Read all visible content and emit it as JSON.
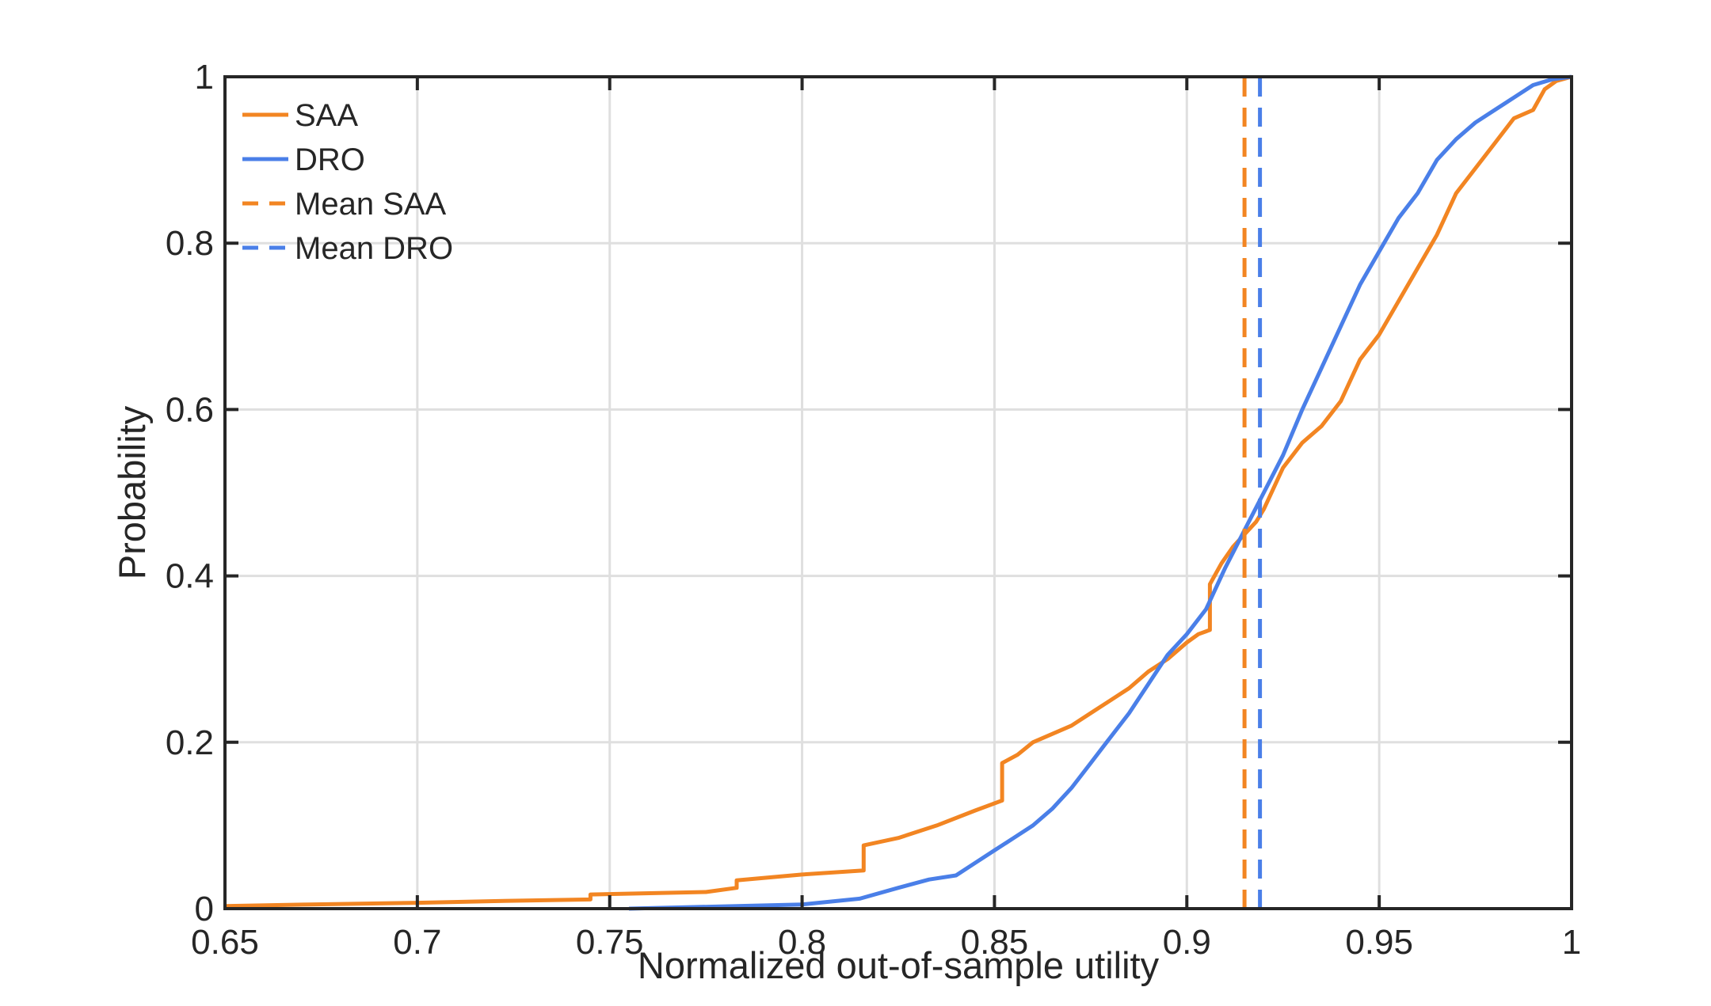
{
  "colors": {
    "saa": "#F28522",
    "dro": "#4A7FE8",
    "axis": "#262626",
    "grid": "#DFDFDF",
    "background": "#FFFFFF"
  },
  "chart_data": {
    "type": "line",
    "xlabel": "Normalized out-of-sample utility",
    "ylabel": "Probability",
    "xlim": [
      0.65,
      1
    ],
    "ylim": [
      0,
      1
    ],
    "xticks": [
      0.65,
      0.7,
      0.75,
      0.8,
      0.85,
      0.9,
      0.95,
      1
    ],
    "xtick_labels": [
      "0.65",
      "0.7",
      "0.75",
      "0.8",
      "0.85",
      "0.9",
      "0.95",
      "1"
    ],
    "yticks": [
      0,
      0.2,
      0.4,
      0.6,
      0.8,
      1
    ],
    "ytick_labels": [
      "0",
      "0.2",
      "0.4",
      "0.6",
      "0.8",
      "1"
    ],
    "grid": true,
    "legend_position": "top-left",
    "series": [
      {
        "name": "SAA",
        "style": "solid",
        "color": "#F28522",
        "x": [
          0.65,
          0.672,
          0.7,
          0.72,
          0.745,
          0.745,
          0.775,
          0.783,
          0.783,
          0.8,
          0.816,
          0.816,
          0.825,
          0.835,
          0.845,
          0.852,
          0.852,
          0.856,
          0.86,
          0.865,
          0.87,
          0.875,
          0.88,
          0.885,
          0.89,
          0.895,
          0.9,
          0.903,
          0.906,
          0.906,
          0.909,
          0.912,
          0.915,
          0.918,
          0.92,
          0.925,
          0.93,
          0.935,
          0.94,
          0.945,
          0.95,
          0.955,
          0.96,
          0.965,
          0.97,
          0.975,
          0.98,
          0.985,
          0.99,
          0.993,
          0.996,
          1.0
        ],
        "y": [
          0.003,
          0.005,
          0.007,
          0.009,
          0.011,
          0.017,
          0.02,
          0.025,
          0.034,
          0.041,
          0.046,
          0.076,
          0.085,
          0.1,
          0.118,
          0.13,
          0.175,
          0.185,
          0.2,
          0.21,
          0.22,
          0.235,
          0.25,
          0.265,
          0.285,
          0.3,
          0.32,
          0.33,
          0.335,
          0.39,
          0.415,
          0.435,
          0.45,
          0.465,
          0.48,
          0.53,
          0.56,
          0.58,
          0.61,
          0.66,
          0.69,
          0.73,
          0.77,
          0.81,
          0.86,
          0.89,
          0.92,
          0.95,
          0.96,
          0.985,
          0.995,
          1.0
        ]
      },
      {
        "name": "DRO",
        "style": "solid",
        "color": "#4A7FE8",
        "x": [
          0.755,
          0.8,
          0.815,
          0.825,
          0.833,
          0.84,
          0.845,
          0.85,
          0.855,
          0.86,
          0.865,
          0.87,
          0.875,
          0.88,
          0.885,
          0.89,
          0.895,
          0.9,
          0.905,
          0.91,
          0.915,
          0.92,
          0.925,
          0.93,
          0.935,
          0.94,
          0.945,
          0.95,
          0.955,
          0.96,
          0.965,
          0.97,
          0.975,
          0.98,
          0.985,
          0.99,
          0.995,
          1.0
        ],
        "y": [
          0.0,
          0.005,
          0.012,
          0.025,
          0.035,
          0.04,
          0.055,
          0.07,
          0.085,
          0.1,
          0.12,
          0.145,
          0.175,
          0.205,
          0.235,
          0.27,
          0.305,
          0.33,
          0.36,
          0.41,
          0.455,
          0.5,
          0.545,
          0.6,
          0.65,
          0.7,
          0.75,
          0.79,
          0.83,
          0.86,
          0.9,
          0.925,
          0.945,
          0.96,
          0.975,
          0.99,
          0.997,
          1.0
        ]
      },
      {
        "name": "Mean SAA",
        "style": "dashed",
        "color": "#F28522",
        "x": [
          0.915,
          0.915
        ],
        "y": [
          0,
          1
        ]
      },
      {
        "name": "Mean DRO",
        "style": "dashed",
        "color": "#4A7FE8",
        "x": [
          0.919,
          0.919
        ],
        "y": [
          0,
          1
        ]
      }
    ]
  }
}
